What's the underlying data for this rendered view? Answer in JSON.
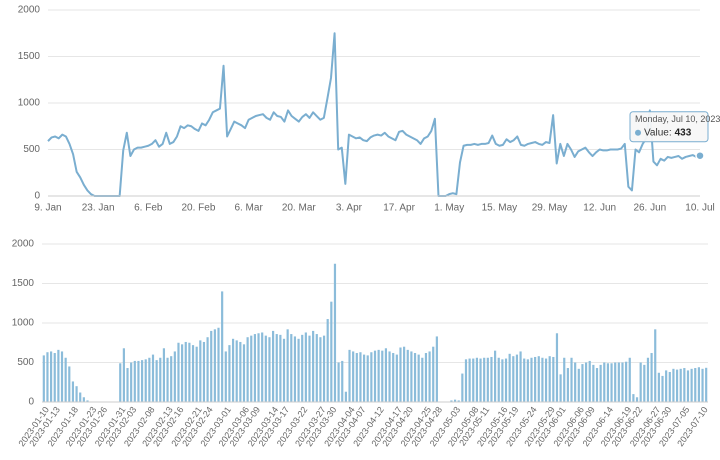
{
  "chart_data": [
    {
      "type": "line",
      "color": "#7aaed0",
      "categories": [
        "9. Jan",
        null,
        null,
        null,
        null,
        null,
        null,
        null,
        null,
        null,
        null,
        null,
        null,
        null,
        "23. Jan",
        null,
        null,
        null,
        null,
        null,
        null,
        null,
        null,
        null,
        null,
        null,
        null,
        null,
        "6. Feb",
        null,
        null,
        null,
        null,
        null,
        null,
        null,
        null,
        null,
        null,
        null,
        null,
        null,
        "20. Feb",
        null,
        null,
        null,
        null,
        null,
        null,
        null,
        null,
        null,
        null,
        null,
        null,
        null,
        "6. Mar",
        null,
        null,
        null,
        null,
        null,
        null,
        null,
        null,
        null,
        null,
        null,
        null,
        null,
        "20. Mar",
        null,
        null,
        null,
        null,
        null,
        null,
        null,
        null,
        null,
        null,
        null,
        null,
        null,
        "3. Apr",
        null,
        null,
        null,
        null,
        null,
        null,
        null,
        null,
        null,
        null,
        null,
        null,
        null,
        "17. Apr",
        null,
        null,
        null,
        null,
        null,
        null,
        null,
        null,
        null,
        null,
        null,
        null,
        null,
        "1. May",
        null,
        null,
        null,
        null,
        null,
        null,
        null,
        null,
        null,
        null,
        null,
        null,
        null,
        "15. May",
        null,
        null,
        null,
        null,
        null,
        null,
        null,
        null,
        null,
        null,
        null,
        null,
        null,
        "29. May",
        null,
        null,
        null,
        null,
        null,
        null,
        null,
        null,
        null,
        null,
        null,
        null,
        null,
        "12. Jun",
        null,
        null,
        null,
        null,
        null,
        null,
        null,
        null,
        null,
        null,
        null,
        null,
        null,
        "26. Jun",
        null,
        null,
        null,
        null,
        null,
        null,
        null,
        null,
        null,
        null,
        null,
        null,
        null,
        "10. Jul"
      ],
      "values": [
        590,
        630,
        640,
        620,
        660,
        640,
        560,
        450,
        260,
        200,
        120,
        60,
        20,
        0,
        0,
        0,
        0,
        0,
        0,
        0,
        0,
        490,
        680,
        430,
        500,
        520,
        520,
        530,
        540,
        560,
        600,
        530,
        560,
        680,
        560,
        580,
        640,
        750,
        730,
        760,
        750,
        720,
        700,
        780,
        760,
        820,
        900,
        920,
        940,
        1400,
        640,
        720,
        800,
        780,
        760,
        730,
        820,
        840,
        860,
        870,
        880,
        840,
        820,
        900,
        860,
        850,
        800,
        920,
        860,
        830,
        800,
        850,
        880,
        840,
        900,
        860,
        820,
        840,
        1050,
        1270,
        1750,
        500,
        520,
        130,
        660,
        640,
        620,
        630,
        600,
        590,
        630,
        650,
        660,
        650,
        680,
        640,
        620,
        600,
        690,
        700,
        660,
        640,
        620,
        600,
        560,
        620,
        640,
        700,
        830,
        0,
        0,
        0,
        20,
        30,
        20,
        360,
        540,
        550,
        550,
        560,
        550,
        560,
        560,
        570,
        650,
        560,
        540,
        550,
        610,
        580,
        600,
        640,
        550,
        540,
        560,
        570,
        580,
        560,
        550,
        580,
        570,
        870,
        350,
        560,
        430,
        560,
        500,
        420,
        480,
        500,
        520,
        470,
        430,
        470,
        500,
        490,
        490,
        500,
        500,
        500,
        510,
        560,
        100,
        60,
        500,
        470,
        560,
        620,
        920,
        370,
        330,
        400,
        380,
        420,
        410,
        420,
        430,
        400,
        420,
        430,
        440,
        420,
        433
      ],
      "ylim": [
        0,
        2000
      ],
      "yticks": [
        0,
        500,
        1000,
        1500,
        2000
      ],
      "grid": true,
      "tooltip": {
        "title": "Monday, Jul 10, 2023",
        "label": "Value:",
        "index": 182
      }
    },
    {
      "type": "bar",
      "color": "#8bbcda",
      "categories": [
        null,
        "2023-01-10",
        null,
        null,
        "2023-01-13",
        null,
        null,
        null,
        null,
        "2023-01-18",
        null,
        null,
        null,
        null,
        "2023-01-23",
        null,
        null,
        "2023-01-26",
        null,
        null,
        null,
        null,
        "2023-01-31",
        null,
        null,
        "2023-02-03",
        null,
        null,
        null,
        null,
        "2023-02-08",
        null,
        null,
        null,
        null,
        "2023-02-13",
        null,
        null,
        "2023-02-16",
        null,
        null,
        null,
        null,
        "2023-02-21",
        null,
        null,
        "2023-02-24",
        null,
        null,
        null,
        null,
        "2023-03-01",
        null,
        null,
        null,
        null,
        "2023-03-06",
        null,
        null,
        "2023-03-09",
        null,
        null,
        null,
        null,
        "2023-03-14",
        null,
        null,
        "2023-03-17",
        null,
        null,
        null,
        null,
        "2023-03-22",
        null,
        null,
        null,
        null,
        "2023-03-27",
        null,
        null,
        "2023-03-30",
        null,
        null,
        null,
        null,
        "2023-04-04",
        null,
        null,
        "2023-04-07",
        null,
        null,
        null,
        null,
        "2023-04-12",
        null,
        null,
        null,
        null,
        "2023-04-17",
        null,
        null,
        "2023-04-20",
        null,
        null,
        null,
        null,
        "2023-04-25",
        null,
        null,
        "2023-04-28",
        null,
        null,
        null,
        null,
        "2023-05-03",
        null,
        null,
        null,
        null,
        "2023-05-08",
        null,
        null,
        "2023-05-11",
        null,
        null,
        null,
        null,
        "2023-05-16",
        null,
        null,
        "2023-05-19",
        null,
        null,
        null,
        null,
        "2023-05-24",
        null,
        null,
        null,
        null,
        "2023-05-29",
        null,
        null,
        "2023-06-01",
        null,
        null,
        null,
        null,
        "2023-06-06",
        null,
        null,
        "2023-06-09",
        null,
        null,
        null,
        null,
        "2023-06-14",
        null,
        null,
        null,
        null,
        "2023-06-19",
        null,
        null,
        "2023-06-22",
        null,
        null,
        null,
        null,
        "2023-06-27",
        null,
        null,
        "2023-06-30",
        null,
        null,
        null,
        null,
        "2023-07-05",
        null,
        null,
        null,
        null,
        "2023-07-10"
      ],
      "values": [
        590,
        630,
        640,
        620,
        660,
        640,
        560,
        450,
        260,
        200,
        120,
        60,
        20,
        0,
        0,
        0,
        0,
        0,
        0,
        0,
        0,
        490,
        680,
        430,
        500,
        520,
        520,
        530,
        540,
        560,
        600,
        530,
        560,
        680,
        560,
        580,
        640,
        750,
        730,
        760,
        750,
        720,
        700,
        780,
        760,
        820,
        900,
        920,
        940,
        1400,
        640,
        720,
        800,
        780,
        760,
        730,
        820,
        840,
        860,
        870,
        880,
        840,
        820,
        900,
        860,
        850,
        800,
        920,
        860,
        830,
        800,
        850,
        880,
        840,
        900,
        860,
        820,
        840,
        1050,
        1270,
        1750,
        500,
        520,
        130,
        660,
        640,
        620,
        630,
        600,
        590,
        630,
        650,
        660,
        650,
        680,
        640,
        620,
        600,
        690,
        700,
        660,
        640,
        620,
        600,
        560,
        620,
        640,
        700,
        830,
        0,
        0,
        0,
        20,
        30,
        20,
        360,
        540,
        550,
        550,
        560,
        550,
        560,
        560,
        570,
        650,
        560,
        540,
        550,
        610,
        580,
        600,
        640,
        550,
        540,
        560,
        570,
        580,
        560,
        550,
        580,
        570,
        870,
        350,
        560,
        430,
        560,
        500,
        420,
        480,
        500,
        520,
        470,
        430,
        470,
        500,
        490,
        490,
        500,
        500,
        500,
        510,
        560,
        100,
        60,
        500,
        470,
        560,
        620,
        920,
        370,
        330,
        400,
        380,
        420,
        410,
        420,
        430,
        400,
        420,
        430,
        440,
        420,
        433
      ],
      "ylim": [
        0,
        2000
      ],
      "yticks": [
        0,
        500,
        1000,
        1500,
        2000
      ],
      "grid": true
    }
  ]
}
